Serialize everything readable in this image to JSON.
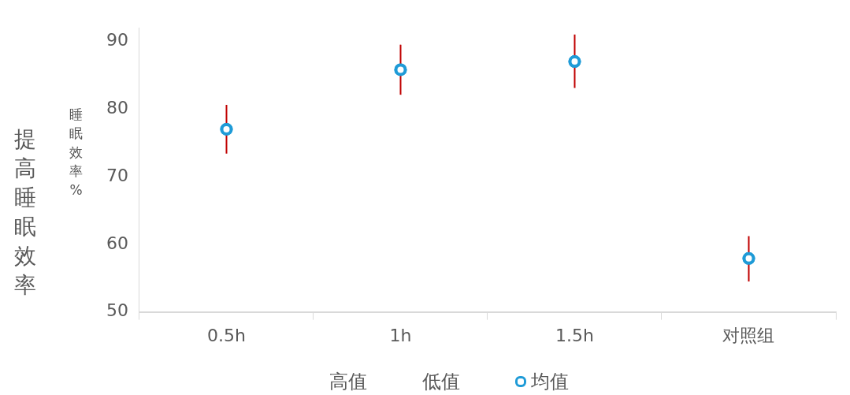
{
  "chart_data": {
    "type": "scatter",
    "ylabel": "提高睡眠效率",
    "categories": [
      "0.5h",
      "1h",
      "1.5h",
      "对照组"
    ],
    "series": [
      {
        "name": "均值",
        "color": "#1f9bd7",
        "values": [
          77,
          85.8,
          87,
          57.9
        ],
        "errors": [
          [
            73.4,
            80.6
          ],
          [
            82.1,
            89.5
          ],
          [
            83.1,
            91
          ],
          [
            54.5,
            61.2
          ]
        ]
      }
    ],
    "ylim": [
      50,
      92
    ],
    "yticks": [
      50,
      60,
      70,
      80,
      90
    ],
    "grid": false,
    "legend": "bottom",
    "marker": "circle",
    "annotations": [
      "睡眠效率%",
      "高值",
      "低值"
    ]
  }
}
